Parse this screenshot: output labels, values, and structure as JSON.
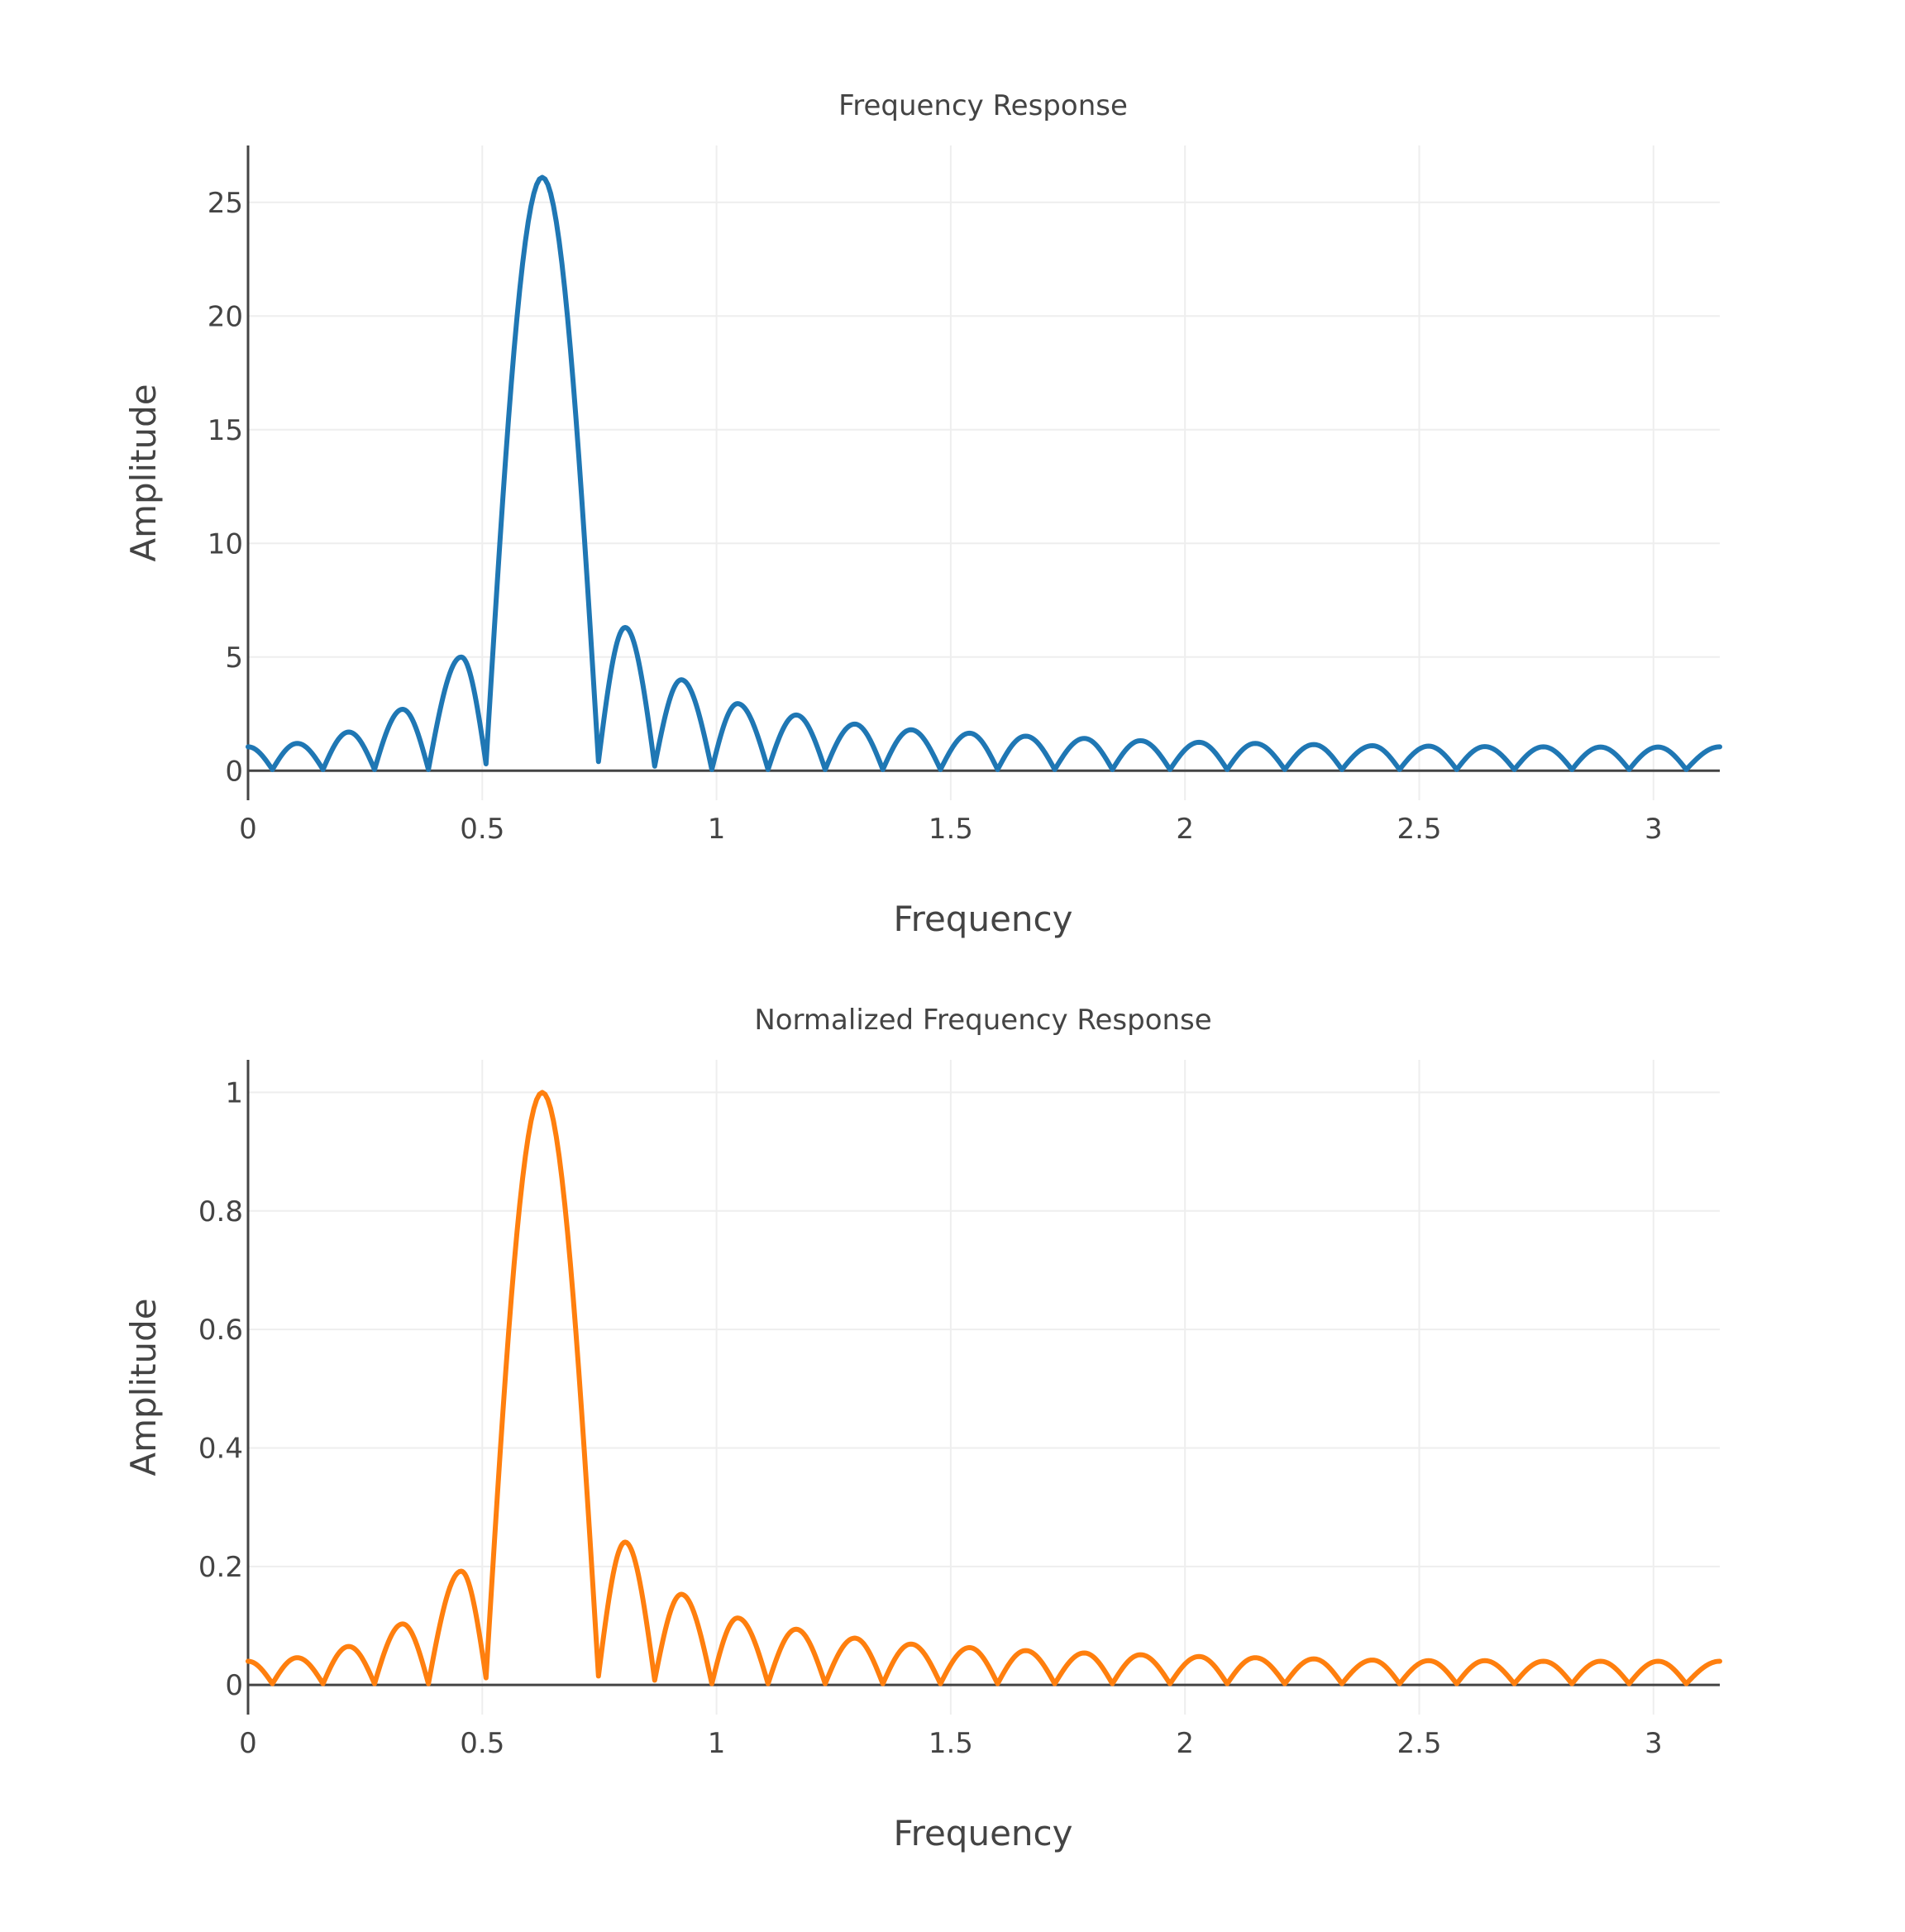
{
  "chart_data": [
    {
      "type": "line",
      "title": "Frequency Response",
      "xlabel": "Frequency",
      "ylabel": "Amplitude",
      "xlim": [
        0,
        3.14159
      ],
      "ylim": [
        -1.3,
        27.5
      ],
      "x_ticks": [
        0,
        0.5,
        1,
        1.5,
        2,
        2.5,
        3
      ],
      "x_tick_labels": [
        "0",
        "0.5",
        "1",
        "1.5",
        "2",
        "2.5",
        "3"
      ],
      "y_ticks": [
        0,
        5,
        10,
        15,
        20,
        25
      ],
      "y_tick_labels": [
        "0",
        "5",
        "10",
        "15",
        "20",
        "25"
      ],
      "grid": true,
      "legend": "none",
      "color": "#1f77b4",
      "series": [
        {
          "peak_frequency": 0.628,
          "main_lobe_nulls": [
            0.508,
            0.748
          ],
          "nulls": [
            0.052,
            0.16,
            0.27,
            0.385,
            0.508,
            0.748,
            0.868,
            0.99,
            1.11,
            1.232,
            1.355,
            1.478,
            1.6,
            1.722,
            1.845,
            1.968,
            2.09,
            2.213,
            2.335,
            2.458,
            2.58,
            2.703,
            2.826,
            2.948,
            3.07
          ],
          "points": [
            [
              0,
              1.05
            ],
            [
              0.052,
              0.05
            ],
            [
              0.105,
              1.2
            ],
            [
              0.16,
              0.05
            ],
            [
              0.215,
              1.7
            ],
            [
              0.27,
              0.05
            ],
            [
              0.33,
              2.7
            ],
            [
              0.385,
              0.05
            ],
            [
              0.455,
              5.0
            ],
            [
              0.508,
              0.3
            ],
            [
              0.628,
              26.1
            ],
            [
              0.748,
              0.4
            ],
            [
              0.805,
              6.3
            ],
            [
              0.868,
              0.2
            ],
            [
              0.925,
              4.0
            ],
            [
              0.99,
              0.05
            ],
            [
              1.045,
              2.95
            ],
            [
              1.11,
              0.05
            ],
            [
              1.17,
              2.45
            ],
            [
              1.232,
              0.05
            ],
            [
              1.295,
              2.05
            ],
            [
              1.355,
              0.05
            ],
            [
              1.415,
              1.8
            ],
            [
              1.478,
              0.05
            ],
            [
              1.54,
              1.65
            ],
            [
              1.6,
              0.05
            ],
            [
              1.66,
              1.52
            ],
            [
              1.722,
              0.05
            ],
            [
              1.785,
              1.42
            ],
            [
              1.845,
              0.05
            ],
            [
              1.905,
              1.32
            ],
            [
              1.968,
              0.05
            ],
            [
              2.03,
              1.25
            ],
            [
              2.09,
              0.05
            ],
            [
              2.15,
              1.2
            ],
            [
              2.213,
              0.05
            ],
            [
              2.275,
              1.15
            ],
            [
              2.335,
              0.05
            ],
            [
              2.4,
              1.1
            ],
            [
              2.458,
              0.05
            ],
            [
              2.52,
              1.08
            ],
            [
              2.58,
              0.05
            ],
            [
              2.64,
              1.06
            ],
            [
              2.703,
              0.05
            ],
            [
              2.765,
              1.05
            ],
            [
              2.826,
              0.05
            ],
            [
              2.887,
              1.04
            ],
            [
              2.948,
              0.05
            ],
            [
              3.01,
              1.04
            ],
            [
              3.07,
              0.05
            ],
            [
              3.14159,
              1.05
            ]
          ]
        }
      ]
    },
    {
      "type": "line",
      "title": "Normalized Frequency Response",
      "xlabel": "Frequency",
      "ylabel": "Amplitude",
      "xlim": [
        0,
        3.14159
      ],
      "ylim": [
        -0.05,
        1.055
      ],
      "x_ticks": [
        0,
        0.5,
        1,
        1.5,
        2,
        2.5,
        3
      ],
      "x_tick_labels": [
        "0",
        "0.5",
        "1",
        "1.5",
        "2",
        "2.5",
        "3"
      ],
      "y_ticks": [
        0,
        0.2,
        0.4,
        0.6,
        0.8,
        1
      ],
      "y_tick_labels": [
        "0",
        "0.2",
        "0.4",
        "0.6",
        "0.8",
        "1"
      ],
      "grid": true,
      "legend": "none",
      "color": "#ff7f0e",
      "series": [
        {
          "peak_frequency": 0.628,
          "main_lobe_nulls": [
            0.508,
            0.748
          ],
          "nulls": [
            0.052,
            0.16,
            0.27,
            0.385,
            0.508,
            0.748,
            0.868,
            0.99,
            1.11,
            1.232,
            1.355,
            1.478,
            1.6,
            1.722,
            1.845,
            1.968,
            2.09,
            2.213,
            2.335,
            2.458,
            2.58,
            2.703,
            2.826,
            2.948,
            3.07
          ],
          "points": [
            [
              0,
              0.04
            ],
            [
              0.052,
              0.002
            ],
            [
              0.105,
              0.046
            ],
            [
              0.16,
              0.002
            ],
            [
              0.215,
              0.065
            ],
            [
              0.27,
              0.002
            ],
            [
              0.33,
              0.103
            ],
            [
              0.385,
              0.002
            ],
            [
              0.455,
              0.192
            ],
            [
              0.508,
              0.012
            ],
            [
              0.628,
              1.0
            ],
            [
              0.748,
              0.015
            ],
            [
              0.805,
              0.241
            ],
            [
              0.868,
              0.008
            ],
            [
              0.925,
              0.153
            ],
            [
              0.99,
              0.002
            ],
            [
              1.045,
              0.113
            ],
            [
              1.11,
              0.002
            ],
            [
              1.17,
              0.094
            ],
            [
              1.232,
              0.002
            ],
            [
              1.295,
              0.079
            ],
            [
              1.355,
              0.002
            ],
            [
              1.415,
              0.069
            ],
            [
              1.478,
              0.002
            ],
            [
              1.54,
              0.063
            ],
            [
              1.6,
              0.002
            ],
            [
              1.66,
              0.058
            ],
            [
              1.722,
              0.002
            ],
            [
              1.785,
              0.054
            ],
            [
              1.845,
              0.002
            ],
            [
              1.905,
              0.051
            ],
            [
              1.968,
              0.002
            ],
            [
              2.03,
              0.048
            ],
            [
              2.09,
              0.002
            ],
            [
              2.15,
              0.046
            ],
            [
              2.213,
              0.002
            ],
            [
              2.275,
              0.044
            ],
            [
              2.335,
              0.002
            ],
            [
              2.4,
              0.042
            ],
            [
              2.458,
              0.002
            ],
            [
              2.52,
              0.041
            ],
            [
              2.58,
              0.002
            ],
            [
              2.64,
              0.041
            ],
            [
              2.703,
              0.002
            ],
            [
              2.765,
              0.04
            ],
            [
              2.826,
              0.002
            ],
            [
              2.887,
              0.04
            ],
            [
              2.948,
              0.002
            ],
            [
              3.01,
              0.04
            ],
            [
              3.07,
              0.002
            ],
            [
              3.14159,
              0.04
            ]
          ]
        }
      ]
    }
  ]
}
